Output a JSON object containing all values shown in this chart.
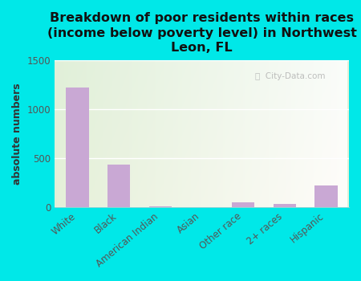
{
  "title": "Breakdown of poor residents within races\n(income below poverty level) in Northwest\nLeon, FL",
  "categories": [
    "White",
    "Black",
    "American Indian",
    "Asian",
    "Other race",
    "2+ races",
    "Hispanic"
  ],
  "values": [
    1220,
    440,
    8,
    4,
    50,
    35,
    220
  ],
  "bar_color": "#c9a8d4",
  "ylabel": "absolute numbers",
  "ylim": [
    0,
    1500
  ],
  "yticks": [
    0,
    500,
    1000,
    1500
  ],
  "bg_top_left": "#d4edda",
  "bg_bottom_right": "#f5f9ee",
  "grid_color": "#ffffff",
  "watermark": "City-Data.com",
  "title_fontsize": 11.5,
  "ylabel_fontsize": 9,
  "tick_fontsize": 8.5,
  "outer_bg": "#00e8e8"
}
